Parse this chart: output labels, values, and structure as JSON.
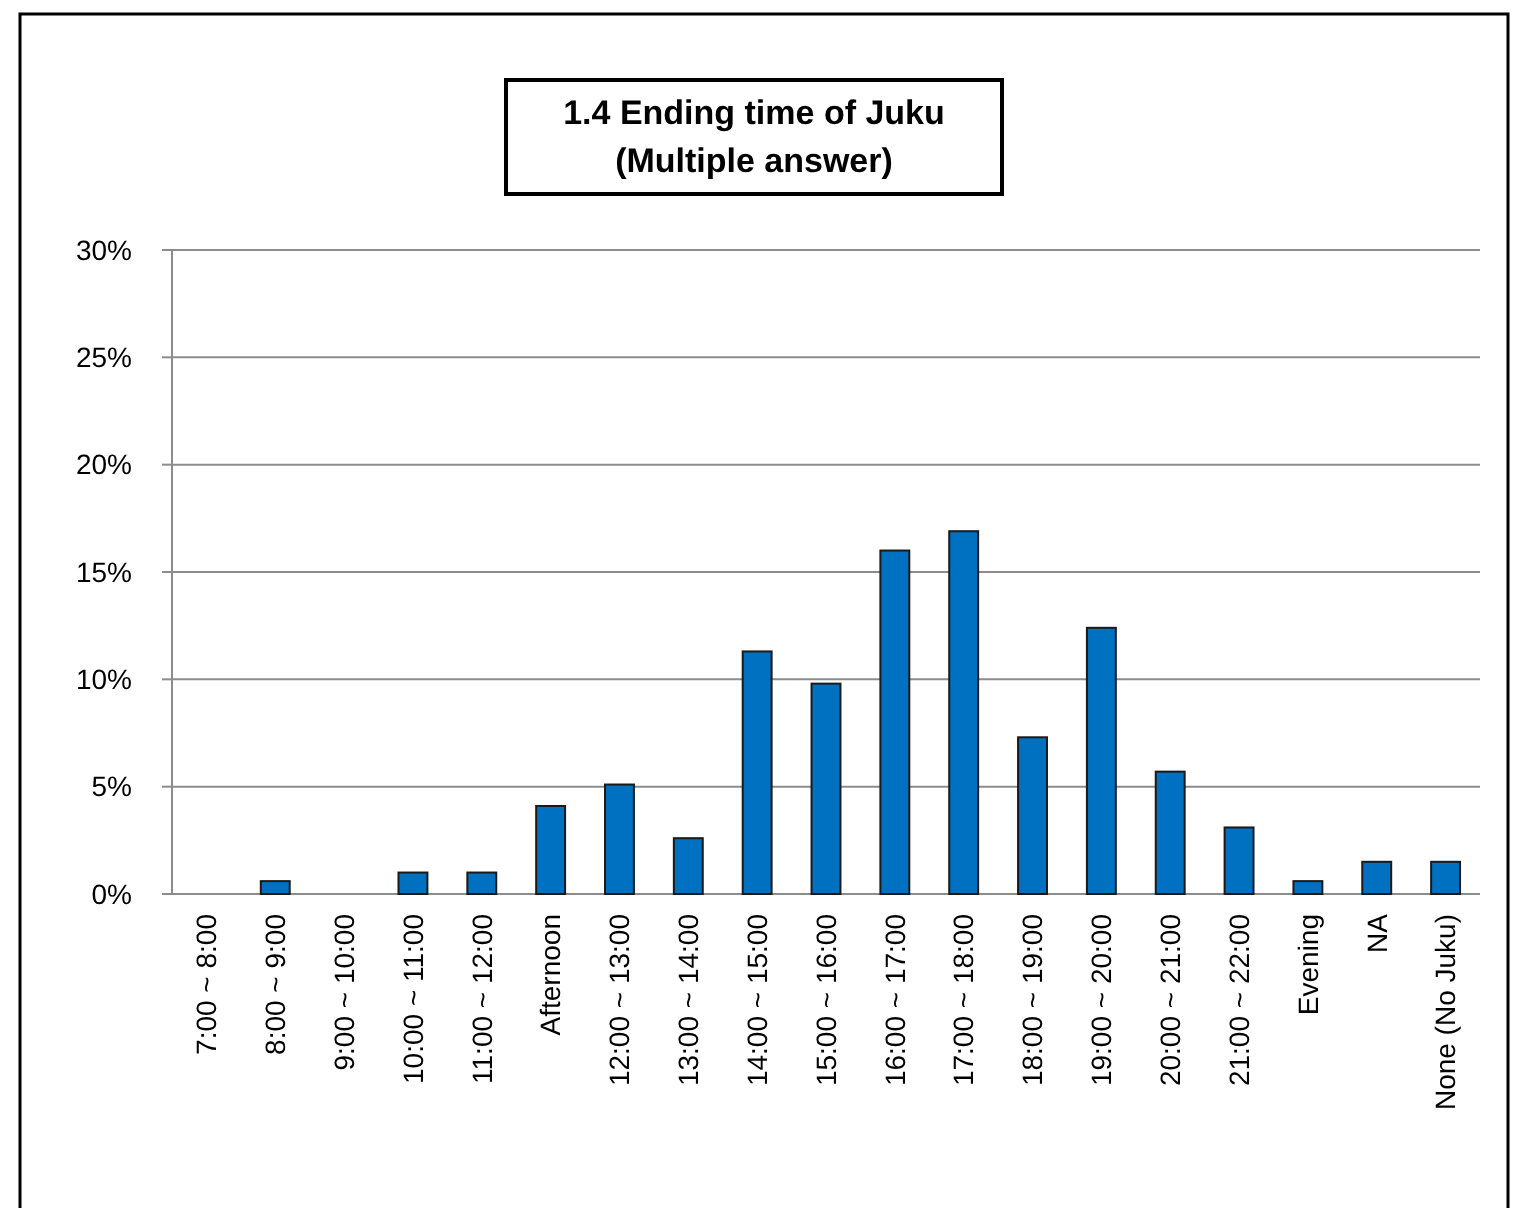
{
  "chart_data": {
    "type": "bar",
    "title": "1.4 Ending time of Juku\n(Multiple answer)",
    "categories": [
      "7:00 ~ 8:00",
      "8:00 ~ 9:00",
      "9:00 ~ 10:00",
      "10:00 ~ 11:00",
      "11:00 ~ 12:00",
      "Afternoon",
      "12:00 ~ 13:00",
      "13:00 ~ 14:00",
      "14:00 ~ 15:00",
      "15:00 ~ 16:00",
      "16:00 ~ 17:00",
      "17:00 ~ 18:00",
      "18:00 ~ 19:00",
      "19:00 ~ 20:00",
      "20:00 ~ 21:00",
      "21:00 ~ 22:00",
      "Evening",
      "NA",
      "None (No Juku)"
    ],
    "values": [
      0,
      0.6,
      0,
      1.0,
      1.0,
      4.1,
      5.1,
      2.6,
      11.3,
      9.8,
      16.0,
      16.9,
      7.3,
      12.4,
      5.7,
      3.1,
      0.6,
      1.5,
      1.5
    ],
    "color": "#0070c0",
    "ylim": [
      0,
      30
    ],
    "yticks": [
      {
        "value": 0,
        "label": "0%"
      },
      {
        "value": 5,
        "label": "5%"
      },
      {
        "value": 10,
        "label": "10%"
      },
      {
        "value": 15,
        "label": "15%"
      },
      {
        "value": 20,
        "label": "20%"
      },
      {
        "value": 25,
        "label": "25%"
      },
      {
        "value": 30,
        "label": "30%"
      }
    ],
    "grid": "y"
  }
}
